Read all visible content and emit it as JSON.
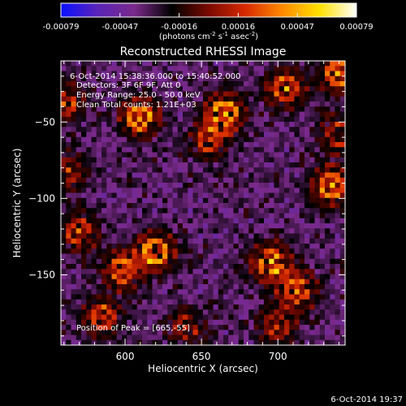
{
  "chart_data": {
    "type": "heatmap",
    "title": "Reconstructed RHESSI Image",
    "xlabel": "Heliocentric X (arcsec)",
    "ylabel": "Heliocentric Y (arcsec)",
    "xlim": [
      558,
      744
    ],
    "ylim": [
      -196,
      -10
    ],
    "x_ticks": [
      600,
      650,
      700
    ],
    "y_ticks": [
      -50,
      -100,
      -150
    ],
    "colorbar": {
      "min": -0.00079,
      "max": 0.00079,
      "ticks": [
        "-0.00079",
        "-0.00047",
        "-0.00016",
        "0.00016",
        "0.00047",
        "0.00079"
      ],
      "unit_parts": [
        "(photons cm",
        "-2",
        " s",
        "-1",
        " asec",
        "-2",
        ")"
      ],
      "colors": [
        "#0a10ff",
        "#5a24b8",
        "#7a2a8a",
        "#000000",
        "#7a0a00",
        "#d82a00",
        "#ff8a00",
        "#ffe000",
        "#ffffff"
      ]
    },
    "peak_regions": [
      {
        "x": 610,
        "y": -47,
        "strength": 1.0
      },
      {
        "x": 560,
        "y": -37,
        "strength": 0.7
      },
      {
        "x": 665,
        "y": -44,
        "strength": 1.0
      },
      {
        "x": 655,
        "y": -62,
        "strength": 0.6
      },
      {
        "x": 705,
        "y": -28,
        "strength": 0.8
      },
      {
        "x": 740,
        "y": -18,
        "strength": 0.9
      },
      {
        "x": 735,
        "y": -92,
        "strength": 0.9
      },
      {
        "x": 740,
        "y": -58,
        "strength": 0.6
      },
      {
        "x": 620,
        "y": -135,
        "strength": 1.0
      },
      {
        "x": 598,
        "y": -147,
        "strength": 0.8
      },
      {
        "x": 570,
        "y": -122,
        "strength": 0.7
      },
      {
        "x": 695,
        "y": -142,
        "strength": 1.0
      },
      {
        "x": 713,
        "y": -160,
        "strength": 0.8
      },
      {
        "x": 585,
        "y": -178,
        "strength": 0.7
      },
      {
        "x": 640,
        "y": -185,
        "strength": 0.6
      },
      {
        "x": 700,
        "y": -183,
        "strength": 0.6
      },
      {
        "x": 562,
        "y": -82,
        "strength": 0.6
      }
    ]
  },
  "annotations": {
    "time_range": "6-Oct-2014 15:38:36.000 to 15:40:52.000",
    "detectors": "Detectors: 3F 6F 9F, Att 0",
    "energy_range": "Energy Range: 25.0 - 50.0 keV",
    "method": "Clean     Total counts: 1.21E+03",
    "peak": "Position of Peak = [665,-55]"
  },
  "footer": {
    "timestamp": "6-Oct-2014 19:37"
  }
}
